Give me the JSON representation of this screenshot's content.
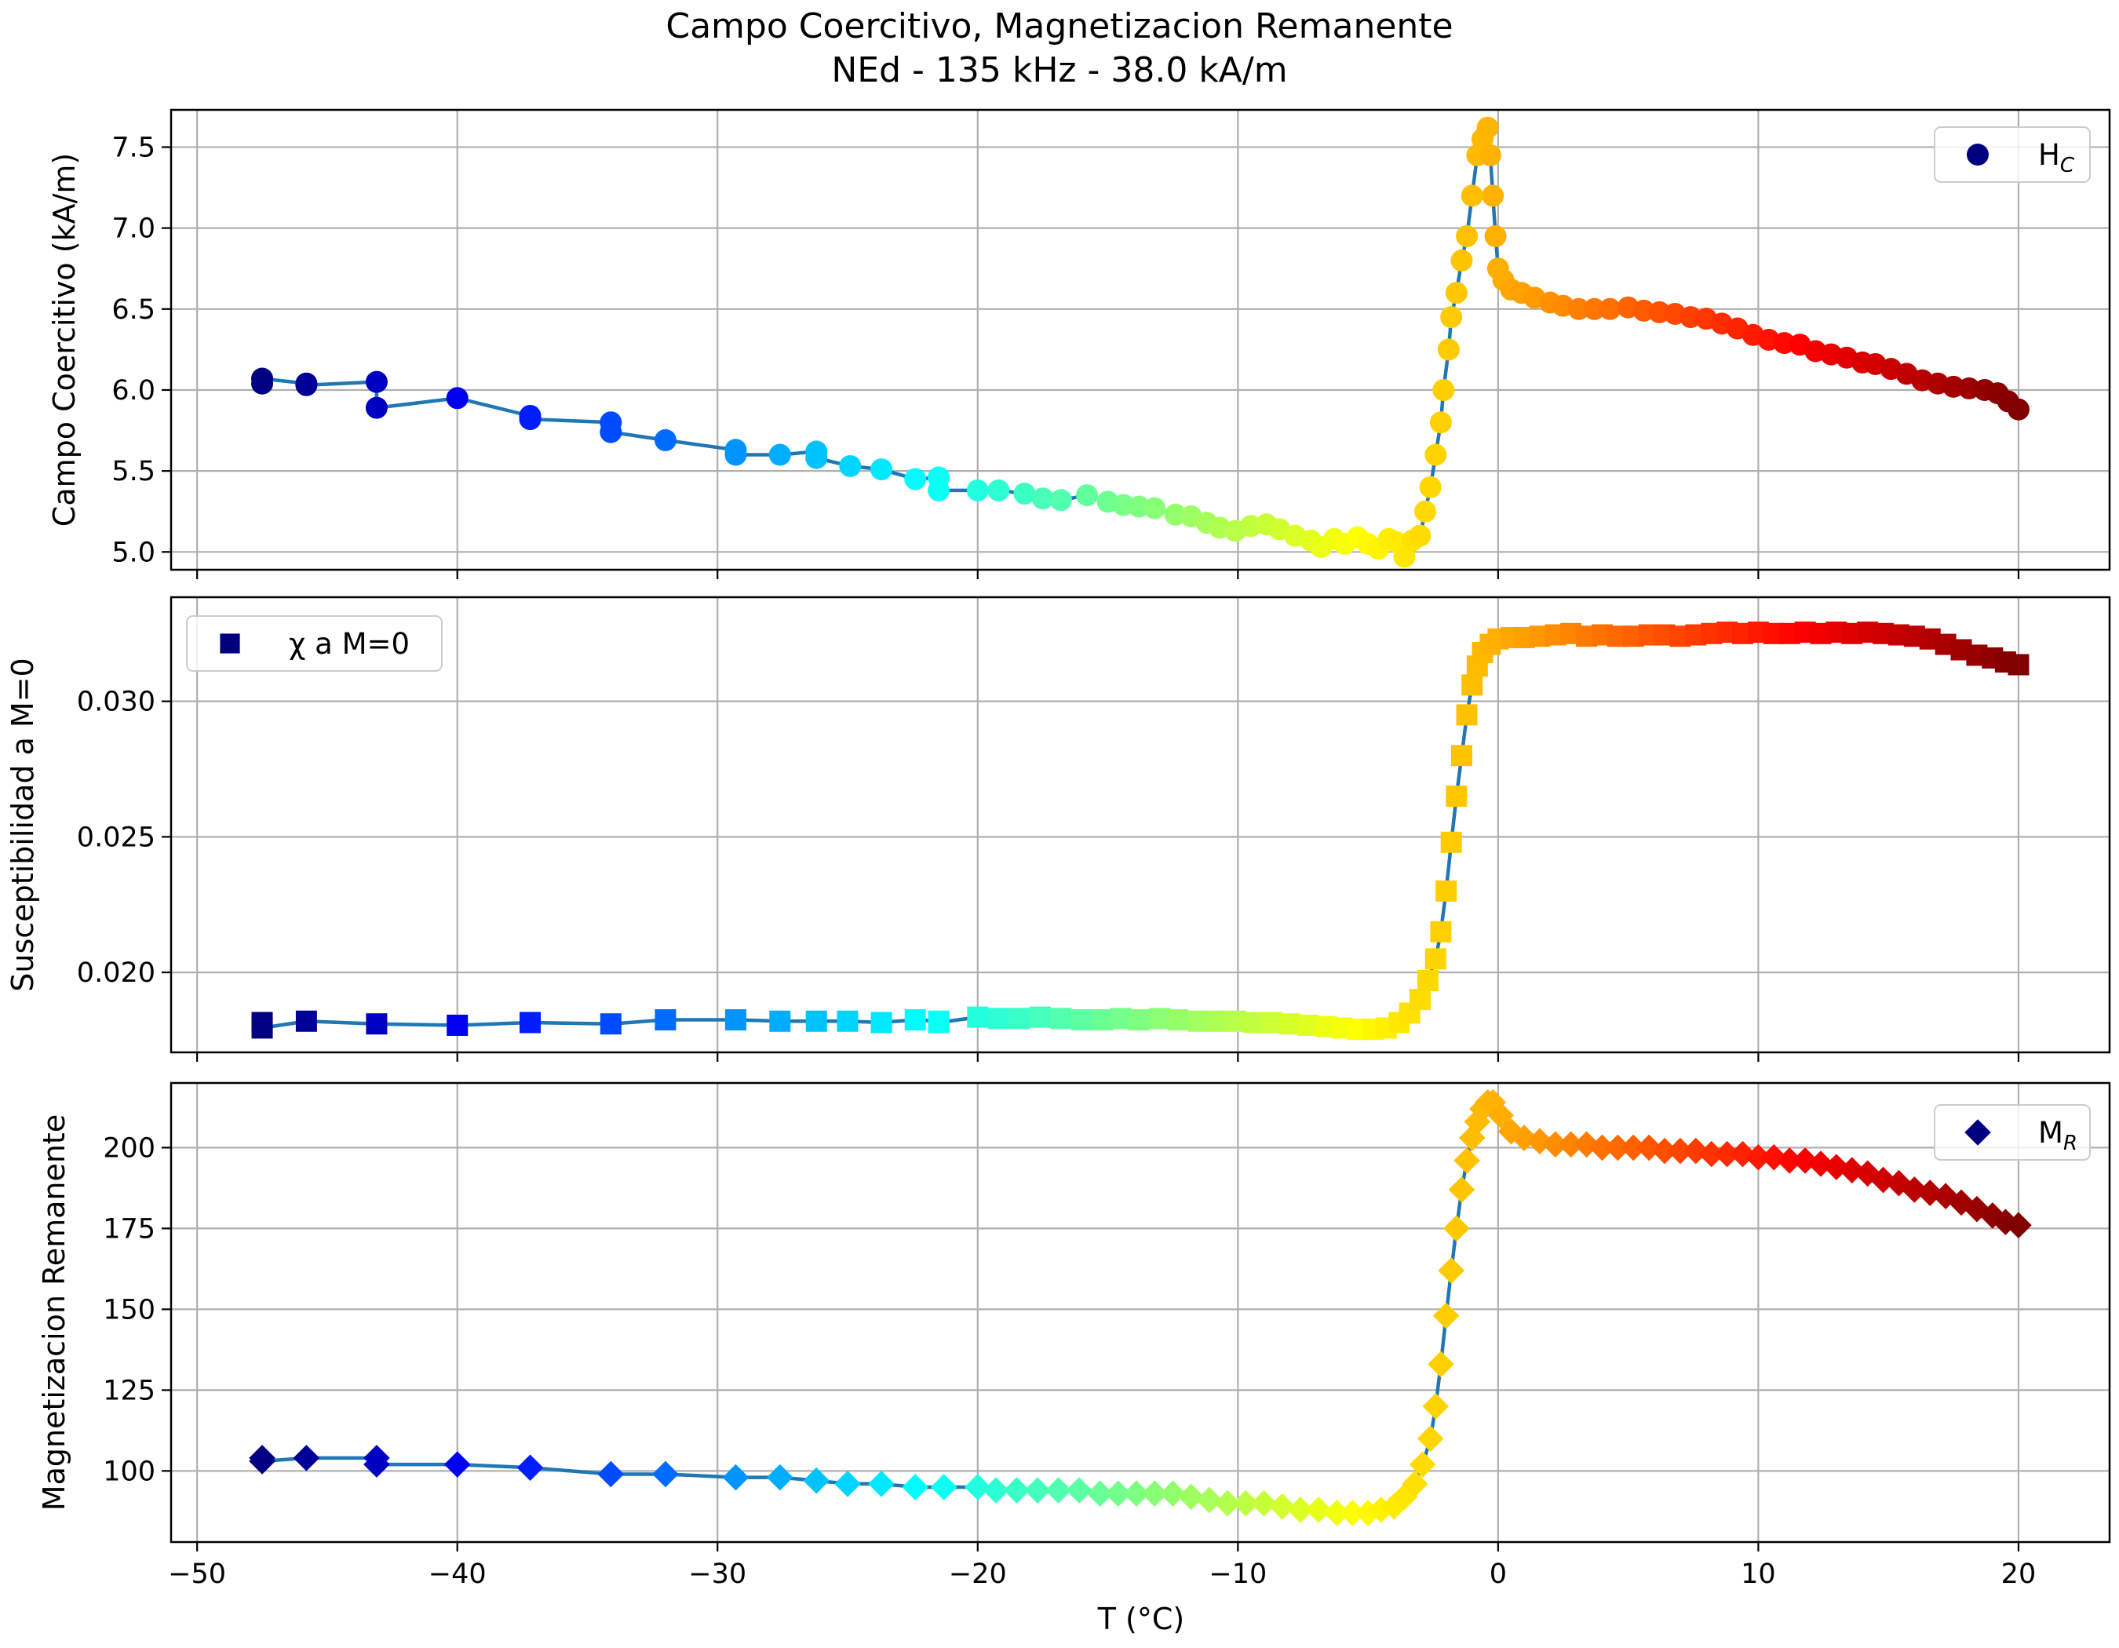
{
  "figure": {
    "title_line1": "Campo Coercitivo, Magnetizacion Remanente",
    "title_line2": "NEd - 135 kHz - 38.0 kA/m",
    "xlabel": "T (°C)"
  },
  "colors": {
    "line": "#1f77b4",
    "legend_marker": "#00007f",
    "grid": "#b0b0b0",
    "colormap": "jet"
  },
  "chart_data": [
    {
      "type": "scatter",
      "marker": "circle",
      "color_by": "x",
      "ylabel": "Campo Coercitivo (kA/m)",
      "legend": {
        "label": "H",
        "sub": "C",
        "position": "upper right"
      },
      "xlim": [
        -51,
        23.5
      ],
      "ylim": [
        4.89,
        7.73
      ],
      "xticks": [
        -50,
        -40,
        -30,
        -20,
        -10,
        0,
        10,
        20
      ],
      "xtick_labels_shown": false,
      "yticks": [
        5.0,
        5.5,
        6.0,
        6.5,
        7.0,
        7.5
      ],
      "ytick_labels": [
        "5.0",
        "5.5",
        "6.0",
        "6.5",
        "7.0",
        "7.5"
      ],
      "grid": true,
      "points": [
        [
          -47.5,
          6.04
        ],
        [
          -47.5,
          6.07
        ],
        [
          -45.8,
          6.04
        ],
        [
          -45.8,
          6.03
        ],
        [
          -43.1,
          6.05
        ],
        [
          -43.1,
          5.89
        ],
        [
          -40.0,
          5.95
        ],
        [
          -37.2,
          5.84
        ],
        [
          -37.2,
          5.82
        ],
        [
          -34.1,
          5.8
        ],
        [
          -34.1,
          5.74
        ],
        [
          -32.0,
          5.69
        ],
        [
          -29.3,
          5.63
        ],
        [
          -29.3,
          5.6
        ],
        [
          -27.6,
          5.6
        ],
        [
          -26.2,
          5.62
        ],
        [
          -26.2,
          5.58
        ],
        [
          -24.9,
          5.53
        ],
        [
          -23.7,
          5.51
        ],
        [
          -22.4,
          5.45
        ],
        [
          -21.5,
          5.46
        ],
        [
          -21.5,
          5.38
        ],
        [
          -20.0,
          5.38
        ],
        [
          -19.2,
          5.38
        ],
        [
          -18.2,
          5.36
        ],
        [
          -17.5,
          5.33
        ],
        [
          -16.8,
          5.32
        ],
        [
          -15.8,
          5.35
        ],
        [
          -15.0,
          5.31
        ],
        [
          -14.4,
          5.29
        ],
        [
          -13.8,
          5.28
        ],
        [
          -13.2,
          5.27
        ],
        [
          -12.4,
          5.23
        ],
        [
          -11.8,
          5.22
        ],
        [
          -11.2,
          5.18
        ],
        [
          -10.7,
          5.15
        ],
        [
          -10.1,
          5.13
        ],
        [
          -9.5,
          5.16
        ],
        [
          -8.9,
          5.17
        ],
        [
          -8.4,
          5.14
        ],
        [
          -7.8,
          5.1
        ],
        [
          -7.2,
          5.07
        ],
        [
          -6.8,
          5.03
        ],
        [
          -6.3,
          5.08
        ],
        [
          -5.9,
          5.05
        ],
        [
          -5.4,
          5.09
        ],
        [
          -5.0,
          5.05
        ],
        [
          -4.6,
          5.02
        ],
        [
          -4.2,
          5.08
        ],
        [
          -3.9,
          5.06
        ],
        [
          -3.6,
          4.97
        ],
        [
          -3.3,
          5.07
        ],
        [
          -3.0,
          5.1
        ],
        [
          -2.8,
          5.25
        ],
        [
          -2.6,
          5.4
        ],
        [
          -2.4,
          5.6
        ],
        [
          -2.2,
          5.8
        ],
        [
          -2.1,
          6.0
        ],
        [
          -1.9,
          6.25
        ],
        [
          -1.8,
          6.45
        ],
        [
          -1.6,
          6.6
        ],
        [
          -1.4,
          6.8
        ],
        [
          -1.2,
          6.95
        ],
        [
          -1.0,
          7.2
        ],
        [
          -0.8,
          7.45
        ],
        [
          -0.6,
          7.55
        ],
        [
          -0.4,
          7.62
        ],
        [
          -0.3,
          7.45
        ],
        [
          -0.2,
          7.2
        ],
        [
          -0.1,
          6.95
        ],
        [
          0.0,
          6.75
        ],
        [
          0.2,
          6.68
        ],
        [
          0.5,
          6.62
        ],
        [
          0.9,
          6.6
        ],
        [
          1.4,
          6.57
        ],
        [
          2.0,
          6.54
        ],
        [
          2.5,
          6.52
        ],
        [
          3.1,
          6.5
        ],
        [
          3.7,
          6.5
        ],
        [
          4.3,
          6.5
        ],
        [
          5.0,
          6.51
        ],
        [
          5.6,
          6.49
        ],
        [
          6.2,
          6.48
        ],
        [
          6.8,
          6.47
        ],
        [
          7.4,
          6.45
        ],
        [
          8.0,
          6.44
        ],
        [
          8.6,
          6.41
        ],
        [
          9.2,
          6.38
        ],
        [
          9.8,
          6.34
        ],
        [
          10.4,
          6.31
        ],
        [
          11.0,
          6.29
        ],
        [
          11.6,
          6.28
        ],
        [
          12.2,
          6.24
        ],
        [
          12.8,
          6.22
        ],
        [
          13.4,
          6.2
        ],
        [
          14.0,
          6.17
        ],
        [
          14.5,
          6.16
        ],
        [
          15.1,
          6.13
        ],
        [
          15.7,
          6.1
        ],
        [
          16.3,
          6.06
        ],
        [
          16.9,
          6.04
        ],
        [
          17.5,
          6.02
        ],
        [
          18.1,
          6.01
        ],
        [
          18.7,
          6.0
        ],
        [
          19.2,
          5.98
        ],
        [
          19.6,
          5.93
        ],
        [
          20.0,
          5.88
        ]
      ]
    },
    {
      "type": "scatter",
      "marker": "square",
      "color_by": "x",
      "ylabel": "Susceptibilidad a M=0",
      "legend": {
        "label": "χ a M=0",
        "position": "upper left"
      },
      "xlim": [
        -51,
        23.5
      ],
      "ylim": [
        0.01705,
        0.03384
      ],
      "xticks": [
        -50,
        -40,
        -30,
        -20,
        -10,
        0,
        10,
        20
      ],
      "xtick_labels_shown": false,
      "yticks": [
        0.02,
        0.025,
        0.03
      ],
      "ytick_labels": [
        "0.020",
        "0.025",
        "0.030"
      ],
      "grid": true,
      "points": [
        [
          -47.5,
          0.01815
        ],
        [
          -47.5,
          0.01795
        ],
        [
          -45.8,
          0.0182
        ],
        [
          -43.1,
          0.0181
        ],
        [
          -40.0,
          0.01805
        ],
        [
          -37.2,
          0.01815
        ],
        [
          -34.1,
          0.0181
        ],
        [
          -32.0,
          0.01825
        ],
        [
          -29.3,
          0.01825
        ],
        [
          -27.6,
          0.0182
        ],
        [
          -26.2,
          0.0182
        ],
        [
          -25.0,
          0.0182
        ],
        [
          -23.7,
          0.01815
        ],
        [
          -22.4,
          0.01825
        ],
        [
          -21.5,
          0.0182
        ],
        [
          -21.5,
          0.01815
        ],
        [
          -20.0,
          0.01835
        ],
        [
          -19.2,
          0.0183
        ],
        [
          -18.4,
          0.0183
        ],
        [
          -17.6,
          0.01835
        ],
        [
          -16.8,
          0.0183
        ],
        [
          -16.0,
          0.01825
        ],
        [
          -15.2,
          0.01825
        ],
        [
          -14.5,
          0.0183
        ],
        [
          -13.8,
          0.01825
        ],
        [
          -13.0,
          0.0183
        ],
        [
          -12.3,
          0.01825
        ],
        [
          -11.5,
          0.0182
        ],
        [
          -10.8,
          0.0182
        ],
        [
          -10.1,
          0.0182
        ],
        [
          -9.4,
          0.01815
        ],
        [
          -8.7,
          0.01815
        ],
        [
          -8.0,
          0.0181
        ],
        [
          -7.3,
          0.01805
        ],
        [
          -6.6,
          0.018
        ],
        [
          -6.0,
          0.01795
        ],
        [
          -5.4,
          0.0179
        ],
        [
          -4.8,
          0.0179
        ],
        [
          -4.3,
          0.01795
        ],
        [
          -3.8,
          0.01815
        ],
        [
          -3.4,
          0.0185
        ],
        [
          -3.0,
          0.019
        ],
        [
          -2.7,
          0.0197
        ],
        [
          -2.4,
          0.0205
        ],
        [
          -2.2,
          0.0215
        ],
        [
          -2.0,
          0.023
        ],
        [
          -1.8,
          0.0248
        ],
        [
          -1.6,
          0.0265
        ],
        [
          -1.4,
          0.028
        ],
        [
          -1.2,
          0.0295
        ],
        [
          -1.0,
          0.0306
        ],
        [
          -0.8,
          0.0313
        ],
        [
          -0.6,
          0.0318
        ],
        [
          -0.3,
          0.0321
        ],
        [
          0.0,
          0.0323
        ],
        [
          0.5,
          0.03235
        ],
        [
          1.0,
          0.03235
        ],
        [
          1.6,
          0.0324
        ],
        [
          2.2,
          0.03245
        ],
        [
          2.8,
          0.0325
        ],
        [
          3.4,
          0.0324
        ],
        [
          4.0,
          0.03245
        ],
        [
          4.6,
          0.0324
        ],
        [
          5.2,
          0.0324
        ],
        [
          5.8,
          0.03245
        ],
        [
          6.4,
          0.03245
        ],
        [
          7.0,
          0.0324
        ],
        [
          7.6,
          0.03245
        ],
        [
          8.2,
          0.0325
        ],
        [
          8.8,
          0.03255
        ],
        [
          9.4,
          0.0325
        ],
        [
          10.0,
          0.03255
        ],
        [
          10.6,
          0.0325
        ],
        [
          11.2,
          0.0325
        ],
        [
          11.8,
          0.03255
        ],
        [
          12.4,
          0.0325
        ],
        [
          13.0,
          0.03255
        ],
        [
          13.6,
          0.0325
        ],
        [
          14.2,
          0.03255
        ],
        [
          14.8,
          0.0325
        ],
        [
          15.4,
          0.03245
        ],
        [
          16.0,
          0.0324
        ],
        [
          16.6,
          0.0323
        ],
        [
          17.2,
          0.0321
        ],
        [
          17.8,
          0.0319
        ],
        [
          18.4,
          0.0317
        ],
        [
          19.0,
          0.0316
        ],
        [
          19.5,
          0.03145
        ],
        [
          20.0,
          0.03135
        ]
      ]
    },
    {
      "type": "scatter",
      "marker": "diamond",
      "color_by": "x",
      "ylabel": "Magnetizacion Remanente",
      "legend": {
        "label": "M",
        "sub": "R",
        "position": "upper right"
      },
      "xlim": [
        -51,
        23.5
      ],
      "ylim": [
        78,
        220
      ],
      "xticks": [
        -50,
        -40,
        -30,
        -20,
        -10,
        0,
        10,
        20
      ],
      "xtick_labels": [
        "−50",
        "−40",
        "−30",
        "−20",
        "−10",
        "0",
        "10",
        "20"
      ],
      "xtick_labels_shown": true,
      "yticks": [
        100,
        125,
        150,
        175,
        200
      ],
      "ytick_labels": [
        "100",
        "125",
        "150",
        "175",
        "200"
      ],
      "grid": true,
      "points": [
        [
          -47.5,
          104
        ],
        [
          -47.5,
          103
        ],
        [
          -45.8,
          104
        ],
        [
          -43.1,
          104
        ],
        [
          -43.1,
          102
        ],
        [
          -40.0,
          102
        ],
        [
          -37.2,
          101
        ],
        [
          -34.1,
          99
        ],
        [
          -32.0,
          99
        ],
        [
          -29.3,
          98
        ],
        [
          -27.6,
          98
        ],
        [
          -26.2,
          97
        ],
        [
          -25.0,
          96
        ],
        [
          -23.7,
          96
        ],
        [
          -22.4,
          95
        ],
        [
          -21.3,
          95
        ],
        [
          -20.0,
          95
        ],
        [
          -19.3,
          94
        ],
        [
          -18.5,
          94
        ],
        [
          -17.7,
          94
        ],
        [
          -16.9,
          94
        ],
        [
          -16.1,
          94
        ],
        [
          -15.3,
          93
        ],
        [
          -14.6,
          93
        ],
        [
          -13.9,
          93
        ],
        [
          -13.2,
          93
        ],
        [
          -12.5,
          93
        ],
        [
          -11.8,
          92
        ],
        [
          -11.1,
          91
        ],
        [
          -10.4,
          90
        ],
        [
          -9.7,
          90
        ],
        [
          -9.0,
          90
        ],
        [
          -8.3,
          89
        ],
        [
          -7.6,
          88
        ],
        [
          -6.9,
          88
        ],
        [
          -6.2,
          87
        ],
        [
          -5.6,
          87
        ],
        [
          -5.0,
          87
        ],
        [
          -4.5,
          88
        ],
        [
          -4.0,
          89
        ],
        [
          -3.6,
          92
        ],
        [
          -3.2,
          96
        ],
        [
          -2.9,
          102
        ],
        [
          -2.6,
          110
        ],
        [
          -2.4,
          120
        ],
        [
          -2.2,
          133
        ],
        [
          -2.0,
          148
        ],
        [
          -1.8,
          162
        ],
        [
          -1.6,
          175
        ],
        [
          -1.4,
          187
        ],
        [
          -1.2,
          196
        ],
        [
          -1.0,
          203
        ],
        [
          -0.8,
          208
        ],
        [
          -0.6,
          212
        ],
        [
          -0.4,
          214
        ],
        [
          -0.2,
          214
        ],
        [
          0.1,
          210
        ],
        [
          0.5,
          205
        ],
        [
          1.0,
          203
        ],
        [
          1.6,
          202
        ],
        [
          2.2,
          201
        ],
        [
          2.8,
          201
        ],
        [
          3.4,
          201
        ],
        [
          4.0,
          200
        ],
        [
          4.6,
          200
        ],
        [
          5.2,
          200
        ],
        [
          5.8,
          200
        ],
        [
          6.4,
          199
        ],
        [
          7.0,
          199
        ],
        [
          7.6,
          199
        ],
        [
          8.2,
          198
        ],
        [
          8.8,
          198
        ],
        [
          9.4,
          198
        ],
        [
          10.0,
          197
        ],
        [
          10.6,
          197
        ],
        [
          11.2,
          196
        ],
        [
          11.8,
          196
        ],
        [
          12.4,
          195
        ],
        [
          13.0,
          194
        ],
        [
          13.6,
          193
        ],
        [
          14.2,
          192
        ],
        [
          14.8,
          190
        ],
        [
          15.4,
          189
        ],
        [
          16.0,
          187
        ],
        [
          16.6,
          186
        ],
        [
          17.2,
          185
        ],
        [
          17.8,
          183
        ],
        [
          18.4,
          181
        ],
        [
          19.0,
          179
        ],
        [
          19.5,
          177
        ],
        [
          20.0,
          176
        ]
      ]
    }
  ]
}
